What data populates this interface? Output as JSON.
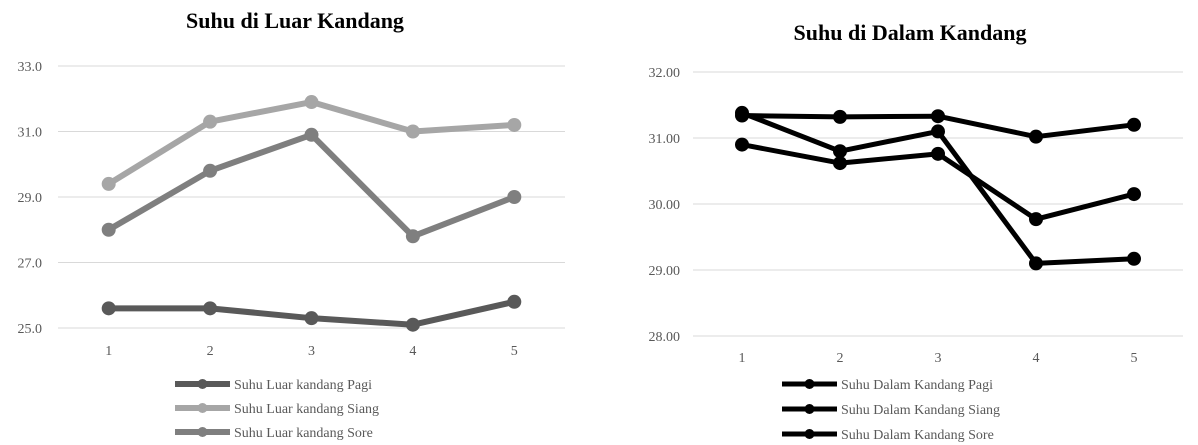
{
  "chart_data": [
    {
      "type": "line",
      "title": "Suhu di Luar Kandang",
      "xlabel": "",
      "ylabel": "",
      "categories": [
        "1",
        "2",
        "3",
        "4",
        "5"
      ],
      "y_ticks": [
        "25.0",
        "27.0",
        "29.0",
        "31.0",
        "33.0"
      ],
      "ylim": [
        25,
        33
      ],
      "grid": true,
      "legend_position": "bottom",
      "series": [
        {
          "name": "Suhu Luar kandang Pagi",
          "values": [
            25.6,
            25.6,
            25.3,
            25.1,
            25.8
          ],
          "color": "#595959"
        },
        {
          "name": "Suhu Luar kandang Siang",
          "values": [
            29.4,
            31.3,
            31.9,
            31.0,
            31.2
          ],
          "color": "#a6a6a6"
        },
        {
          "name": "Suhu Luar kandang Sore",
          "values": [
            28.0,
            29.8,
            30.9,
            27.8,
            29.0
          ],
          "color": "#7f7f7f"
        }
      ]
    },
    {
      "type": "line",
      "title": "Suhu di Dalam Kandang",
      "xlabel": "",
      "ylabel": "",
      "categories": [
        "1",
        "2",
        "3",
        "4",
        "5"
      ],
      "y_ticks": [
        "28.00",
        "29.00",
        "30.00",
        "31.00",
        "32.00"
      ],
      "ylim": [
        28,
        32
      ],
      "grid": true,
      "legend_position": "bottom",
      "series": [
        {
          "name": "Suhu Dalam Kandang Pagi",
          "values": [
            31.38,
            30.8,
            31.1,
            29.1,
            29.17
          ],
          "color": "#000000"
        },
        {
          "name": "Suhu Dalam Kandang Siang",
          "values": [
            30.9,
            30.62,
            30.76,
            29.77,
            30.15
          ],
          "color": "#000000"
        },
        {
          "name": "Suhu Dalam Kandang Sore",
          "values": [
            31.34,
            31.32,
            31.33,
            31.02,
            31.2
          ],
          "color": "#000000"
        }
      ]
    }
  ]
}
